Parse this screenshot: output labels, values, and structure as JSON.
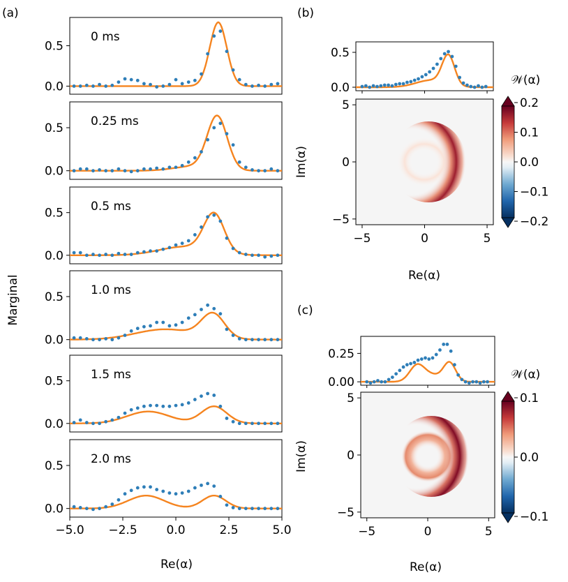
{
  "colors": {
    "data_points": "#2e7eb8",
    "fit_line": "#f5841f",
    "wigner_positive": "#67001f",
    "wigner_negative": "#053061"
  },
  "panel_labels": {
    "a": "(a)",
    "b": "(b)",
    "c": "(c)"
  },
  "chart_data": [
    {
      "type": "line",
      "panel": "(a)",
      "title": "0 ms",
      "xlabel": "Re(α)",
      "ylabel": "Marginal",
      "xlim": [
        -5,
        5
      ],
      "ylim": [
        -0.1,
        0.85
      ],
      "xticks": [
        "−5.0",
        "−2.5",
        "0.0",
        "2.5",
        "5.0"
      ],
      "yticks": [
        "0.0",
        "0.5"
      ],
      "series": [
        {
          "style": "markers",
          "x": [
            -4.8,
            -4.5,
            -4.2,
            -3.9,
            -3.6,
            -3.3,
            -3.0,
            -2.7,
            -2.4,
            -2.1,
            -1.8,
            -1.5,
            -1.2,
            -0.9,
            -0.6,
            -0.3,
            0.0,
            0.3,
            0.6,
            0.9,
            1.2,
            1.5,
            1.8,
            2.1,
            2.4,
            2.7,
            3.0,
            3.3,
            3.6,
            3.9,
            4.2,
            4.5,
            4.8
          ],
          "y": [
            0.0,
            0.0,
            0.01,
            0.0,
            0.02,
            0.0,
            0.01,
            0.05,
            0.09,
            0.08,
            0.07,
            0.03,
            0.02,
            -0.01,
            0.0,
            0.02,
            0.08,
            0.03,
            0.05,
            0.07,
            0.15,
            0.4,
            0.62,
            0.68,
            0.43,
            0.2,
            0.08,
            0.02,
            0.0,
            0.01,
            0.0,
            0.02,
            0.03
          ]
        },
        {
          "style": "line",
          "fit": {
            "A": 0.79,
            "mu": 2.0,
            "s": 0.4,
            "B": 0.0,
            "m2": 0,
            "s2": 1
          }
        }
      ]
    },
    {
      "type": "line",
      "panel": "(a)",
      "title": "0.25 ms",
      "xlim": [
        -5,
        5
      ],
      "ylim": [
        -0.1,
        0.8
      ],
      "yticks": [
        "0.0",
        "0.5"
      ],
      "series": [
        {
          "style": "markers",
          "x": [
            -4.8,
            -4.5,
            -4.2,
            -3.9,
            -3.6,
            -3.3,
            -3.0,
            -2.7,
            -2.4,
            -2.1,
            -1.8,
            -1.5,
            -1.2,
            -0.9,
            -0.6,
            -0.3,
            0.0,
            0.3,
            0.6,
            0.9,
            1.2,
            1.5,
            1.8,
            2.1,
            2.4,
            2.7,
            3.0,
            3.3,
            3.6,
            3.9,
            4.2,
            4.5,
            4.8
          ],
          "y": [
            0.0,
            0.02,
            0.02,
            0.0,
            0.01,
            0.0,
            0.0,
            0.02,
            0.0,
            -0.01,
            0.0,
            0.02,
            0.02,
            0.03,
            0.02,
            0.04,
            0.04,
            0.06,
            0.1,
            0.15,
            0.22,
            0.36,
            0.5,
            0.55,
            0.43,
            0.3,
            0.1,
            0.04,
            0.01,
            0.0,
            0.0,
            0.02,
            0.0
          ]
        },
        {
          "style": "line",
          "fit": {
            "A": 0.62,
            "mu": 1.95,
            "s": 0.47,
            "B": 0.05,
            "m2": 0.8,
            "s2": 0.9
          }
        }
      ]
    },
    {
      "type": "line",
      "panel": "(a)",
      "title": "0.5 ms",
      "xlim": [
        -5,
        5
      ],
      "ylim": [
        -0.1,
        0.8
      ],
      "yticks": [
        "0.0",
        "0.5"
      ],
      "series": [
        {
          "style": "markers",
          "x": [
            -4.8,
            -4.5,
            -4.2,
            -3.9,
            -3.6,
            -3.3,
            -3.0,
            -2.7,
            -2.4,
            -2.1,
            -1.8,
            -1.5,
            -1.2,
            -0.9,
            -0.6,
            -0.3,
            0.0,
            0.3,
            0.6,
            0.9,
            1.2,
            1.5,
            1.8,
            2.1,
            2.4,
            2.7,
            3.0,
            3.3,
            3.6,
            3.9,
            4.2,
            4.5,
            4.8
          ],
          "y": [
            0.03,
            0.03,
            0.0,
            0.01,
            0.0,
            0.01,
            0.0,
            0.02,
            0.01,
            0.01,
            0.03,
            0.04,
            0.05,
            0.05,
            0.07,
            0.09,
            0.12,
            0.14,
            0.17,
            0.24,
            0.33,
            0.45,
            0.47,
            0.4,
            0.2,
            0.08,
            0.03,
            0.01,
            0.0,
            0.0,
            -0.02,
            -0.01,
            0.0
          ]
        },
        {
          "style": "line",
          "fit": {
            "A": 0.45,
            "mu": 1.8,
            "s": 0.48,
            "B": 0.1,
            "m2": 0.4,
            "s2": 1.2
          }
        }
      ]
    },
    {
      "type": "line",
      "panel": "(a)",
      "title": "1.0 ms",
      "xlim": [
        -5,
        5
      ],
      "ylim": [
        -0.1,
        0.8
      ],
      "yticks": [
        "0.0",
        "0.5"
      ],
      "series": [
        {
          "style": "markers",
          "x": [
            -4.8,
            -4.5,
            -4.2,
            -3.9,
            -3.6,
            -3.3,
            -3.0,
            -2.7,
            -2.4,
            -2.1,
            -1.8,
            -1.5,
            -1.2,
            -0.9,
            -0.6,
            -0.3,
            0.0,
            0.3,
            0.6,
            0.9,
            1.2,
            1.5,
            1.8,
            2.1,
            2.4,
            2.7,
            3.0,
            3.3,
            3.6,
            3.9,
            4.2,
            4.5,
            4.8
          ],
          "y": [
            0.02,
            0.02,
            0.01,
            0.0,
            0.0,
            0.01,
            0.0,
            0.02,
            0.05,
            0.1,
            0.13,
            0.15,
            0.16,
            0.2,
            0.2,
            0.16,
            0.17,
            0.2,
            0.25,
            0.29,
            0.35,
            0.4,
            0.36,
            0.3,
            0.12,
            0.05,
            0.01,
            0.0,
            0.0,
            0.0,
            0.0,
            0.0,
            0.0
          ]
        },
        {
          "style": "line",
          "fit": {
            "A": 0.28,
            "mu": 1.75,
            "s": 0.55,
            "B": 0.12,
            "m2": -0.5,
            "s2": 1.4
          }
        }
      ]
    },
    {
      "type": "line",
      "panel": "(a)",
      "title": "1.5 ms",
      "xlim": [
        -5,
        5
      ],
      "ylim": [
        -0.1,
        0.8
      ],
      "yticks": [
        "0.0",
        "0.5"
      ],
      "series": [
        {
          "style": "markers",
          "x": [
            -4.8,
            -4.5,
            -4.2,
            -3.9,
            -3.6,
            -3.3,
            -3.0,
            -2.7,
            -2.4,
            -2.1,
            -1.8,
            -1.5,
            -1.2,
            -0.9,
            -0.6,
            -0.3,
            0.0,
            0.3,
            0.6,
            0.9,
            1.2,
            1.5,
            1.8,
            2.1,
            2.4,
            2.7,
            3.0,
            3.3,
            3.6,
            3.9,
            4.2,
            4.5,
            4.8
          ],
          "y": [
            0.01,
            0.04,
            0.01,
            0.0,
            0.0,
            0.02,
            0.04,
            0.07,
            0.12,
            0.16,
            0.18,
            0.2,
            0.21,
            0.21,
            0.2,
            0.2,
            0.21,
            0.22,
            0.24,
            0.28,
            0.32,
            0.35,
            0.33,
            0.2,
            0.06,
            0.02,
            0.0,
            0.0,
            0.0,
            0.0,
            0.0,
            0.0,
            0.0
          ]
        },
        {
          "style": "line",
          "fit": {
            "A": 0.2,
            "mu": 1.8,
            "s": 0.6,
            "B": 0.14,
            "m2": -1.3,
            "s2": 1.0
          }
        }
      ]
    },
    {
      "type": "line",
      "panel": "(a)",
      "title": "2.0 ms",
      "xlim": [
        -5,
        5
      ],
      "ylim": [
        -0.1,
        0.8
      ],
      "xticks": [
        "−5.0",
        "−2.5",
        "0.0",
        "2.5",
        "5.0"
      ],
      "yticks": [
        "0.0",
        "0.5"
      ],
      "series": [
        {
          "style": "markers",
          "x": [
            -4.8,
            -4.5,
            -4.2,
            -3.9,
            -3.6,
            -3.3,
            -3.0,
            -2.7,
            -2.4,
            -2.1,
            -1.8,
            -1.5,
            -1.2,
            -0.9,
            -0.6,
            -0.3,
            0.0,
            0.3,
            0.6,
            0.9,
            1.2,
            1.5,
            1.8,
            2.1,
            2.4,
            2.7,
            3.0,
            3.3,
            3.6,
            3.9,
            4.2,
            4.5,
            4.8
          ],
          "y": [
            0.02,
            0.01,
            0.0,
            -0.01,
            0.0,
            0.02,
            0.05,
            0.1,
            0.17,
            0.21,
            0.24,
            0.25,
            0.25,
            0.22,
            0.2,
            0.18,
            0.17,
            0.18,
            0.2,
            0.24,
            0.27,
            0.29,
            0.26,
            0.14,
            0.04,
            0.01,
            0.0,
            0.0,
            0.0,
            0.0,
            0.0,
            0.0,
            0.0
          ]
        },
        {
          "style": "line",
          "fit": {
            "A": 0.15,
            "mu": 1.8,
            "s": 0.55,
            "B": 0.15,
            "m2": -1.4,
            "s2": 0.85
          }
        }
      ]
    },
    {
      "type": "line",
      "panel": "(b)",
      "title": "",
      "xlim": [
        -5.5,
        5.5
      ],
      "ylim": [
        -0.05,
        0.65
      ],
      "yticks": [
        "0.0",
        "0.5"
      ],
      "series": [
        {
          "style": "markers",
          "x": [
            -5.0,
            -4.7,
            -4.4,
            -4.1,
            -3.8,
            -3.5,
            -3.2,
            -2.9,
            -2.6,
            -2.3,
            -2.0,
            -1.7,
            -1.4,
            -1.1,
            -0.8,
            -0.5,
            -0.2,
            0.1,
            0.4,
            0.7,
            1.0,
            1.3,
            1.6,
            1.9,
            2.2,
            2.5,
            2.8,
            3.1,
            3.4,
            3.7,
            4.0,
            4.3,
            4.6,
            4.9
          ],
          "y": [
            0.01,
            0.02,
            0.0,
            0.02,
            0.01,
            0.02,
            0.03,
            0.03,
            0.02,
            0.04,
            0.05,
            0.05,
            0.07,
            0.08,
            0.1,
            0.12,
            0.15,
            0.18,
            0.22,
            0.27,
            0.33,
            0.41,
            0.48,
            0.51,
            0.44,
            0.3,
            0.14,
            0.06,
            0.03,
            0.01,
            0.0,
            0.02,
            0.0,
            0.01
          ]
        },
        {
          "style": "line",
          "fit": {
            "A": 0.42,
            "mu": 1.9,
            "s": 0.5,
            "B": 0.1,
            "m2": 0.5,
            "s2": 1.2
          }
        }
      ]
    },
    {
      "type": "heatmap",
      "panel": "(b)",
      "xlabel": "Re(α)",
      "ylabel": "Im(α)",
      "xlim": [
        -5.5,
        5.5
      ],
      "ylim": [
        -5.5,
        5.5
      ],
      "xticks": [
        "−5",
        "0",
        "5"
      ],
      "yticks": [
        "−5",
        "0",
        "5"
      ],
      "colorbar": {
        "label": "𝒲(α)",
        "ticks": [
          "0.2",
          "0.1",
          "0.0",
          "−0.1",
          "−0.2"
        ],
        "vmin": -0.2,
        "vmax": 0.2
      },
      "description_values": {
        "ring_radius": 2.0,
        "peak_angle_deg": 0
      }
    },
    {
      "type": "line",
      "panel": "(c)",
      "title": "",
      "xlim": [
        -5.5,
        5.5
      ],
      "ylim": [
        -0.03,
        0.4
      ],
      "yticks": [
        "0.00",
        "0.25"
      ],
      "series": [
        {
          "style": "markers",
          "x": [
            -5.0,
            -4.7,
            -4.4,
            -4.1,
            -3.8,
            -3.5,
            -3.2,
            -2.9,
            -2.6,
            -2.3,
            -2.0,
            -1.7,
            -1.4,
            -1.1,
            -0.8,
            -0.5,
            -0.2,
            0.1,
            0.4,
            0.7,
            1.0,
            1.3,
            1.6,
            1.9,
            2.2,
            2.5,
            2.8,
            3.1,
            3.4,
            3.7,
            4.0,
            4.3,
            4.6,
            4.9
          ],
          "y": [
            0.0,
            -0.01,
            0.0,
            0.01,
            0.0,
            0.0,
            0.02,
            0.04,
            0.07,
            0.1,
            0.13,
            0.15,
            0.16,
            0.17,
            0.19,
            0.2,
            0.21,
            0.2,
            0.21,
            0.24,
            0.28,
            0.33,
            0.33,
            0.27,
            0.15,
            0.06,
            0.02,
            0.0,
            -0.01,
            0.0,
            0.0,
            -0.01,
            0.0,
            0.0
          ]
        },
        {
          "style": "line",
          "fit": {
            "A": 0.16,
            "mu": 1.8,
            "s": 0.5,
            "B": 0.13,
            "m2": -0.9,
            "s2": 0.6,
            "C": 0.06,
            "m3": 0.3,
            "s3": 0.9
          }
        }
      ]
    },
    {
      "type": "heatmap",
      "panel": "(c)",
      "xlabel": "Re(α)",
      "ylabel": "Im(α)",
      "xlim": [
        -5.5,
        5.5
      ],
      "ylim": [
        -5.5,
        5.5
      ],
      "xticks": [
        "−5",
        "0",
        "5"
      ],
      "yticks": [
        "−5",
        "0",
        "5"
      ],
      "colorbar": {
        "label": "𝒲(α)",
        "ticks": [
          "0.1",
          "0.0",
          "−0.1"
        ],
        "vmin": -0.1,
        "vmax": 0.1
      },
      "description_values": {
        "ring_radius": 1.8,
        "peak_angle_deg": 0
      }
    }
  ]
}
